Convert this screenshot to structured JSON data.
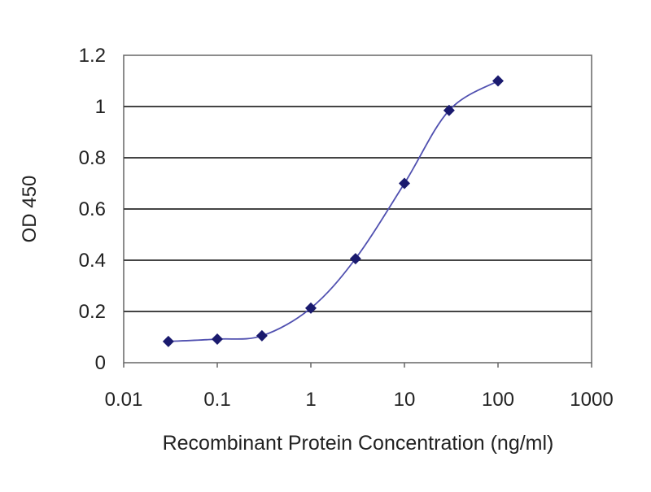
{
  "chart_data": {
    "type": "line",
    "title": "",
    "xlabel": "Recombinant Protein Concentration (ng/ml)",
    "ylabel": "OD 450",
    "x_scale": "log",
    "xlim": [
      0.01,
      1000
    ],
    "ylim": [
      0,
      1.2
    ],
    "x_ticks": [
      "0.01",
      "0.1",
      "1",
      "10",
      "100",
      "1000"
    ],
    "y_ticks": [
      "0",
      "0.2",
      "0.4",
      "0.6",
      "0.8",
      "1",
      "1.2"
    ],
    "grid": "horizontal",
    "legend": "none",
    "series": [
      {
        "x": [
          0.03,
          0.1,
          0.3,
          1,
          3,
          10,
          30,
          100
        ],
        "y": [
          0.083,
          0.092,
          0.105,
          0.213,
          0.406,
          0.7,
          0.985,
          1.1
        ],
        "color": "#1a1a6e",
        "line_color": "#5050b0",
        "marker": "diamond",
        "smooth": true
      }
    ]
  }
}
